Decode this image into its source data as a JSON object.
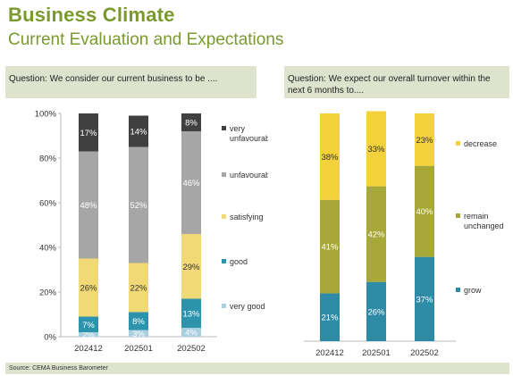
{
  "header": {
    "title": "Business Climate",
    "subtitle": "Current Evaluation and Expectations"
  },
  "source": "Source: CEMA Business Barometer",
  "colors": {
    "brand_green": "#7a9a2e",
    "band": "#dde3cd"
  },
  "chart_data": [
    {
      "type": "bar",
      "stacked": true,
      "question": "Question: We consider our current business to be ....",
      "categories": [
        "202412",
        "202501",
        "202502"
      ],
      "ylim": [
        0,
        100
      ],
      "ytick_labels": [
        "0%",
        "20%",
        "40%",
        "60%",
        "80%",
        "100%"
      ],
      "legend_position": "right",
      "series": [
        {
          "name": "very good",
          "values": [
            2,
            3,
            4
          ],
          "labels": [
            "2%",
            "3%",
            "4%"
          ],
          "color": "#a9cfe0"
        },
        {
          "name": "good",
          "values": [
            7,
            8,
            13
          ],
          "labels": [
            "7%",
            "8%",
            "13%"
          ],
          "color": "#2d93ad"
        },
        {
          "name": "satisfying",
          "values": [
            26,
            22,
            29
          ],
          "labels": [
            "26%",
            "22%",
            "29%"
          ],
          "color": "#f1d978"
        },
        {
          "name": "unfavourable",
          "values": [
            48,
            52,
            46
          ],
          "labels": [
            "48%",
            "52%",
            "46%"
          ],
          "color": "#a6a6a6"
        },
        {
          "name": "very unfavourable",
          "values": [
            17,
            14,
            8
          ],
          "labels": [
            "17%",
            "14%",
            "8%"
          ],
          "color": "#404040"
        }
      ]
    },
    {
      "type": "bar",
      "stacked": true,
      "question": "Question: We expect our overall turnover within the next 6 months to....",
      "categories": [
        "202412",
        "202501",
        "202502"
      ],
      "ylim": [
        0,
        100
      ],
      "legend_position": "right",
      "series": [
        {
          "name": "grow",
          "values": [
            21,
            26,
            37
          ],
          "labels": [
            "21%",
            "26%",
            "37%"
          ],
          "color": "#2f8aa6"
        },
        {
          "name": "remain unchanged",
          "values": [
            41,
            42,
            40
          ],
          "labels": [
            "41%",
            "42%",
            "40%"
          ],
          "color": "#a8a838"
        },
        {
          "name": "decrease",
          "values": [
            38,
            33,
            23
          ],
          "labels": [
            "38%",
            "33%",
            "23%"
          ],
          "color": "#f4d23c"
        }
      ]
    }
  ]
}
